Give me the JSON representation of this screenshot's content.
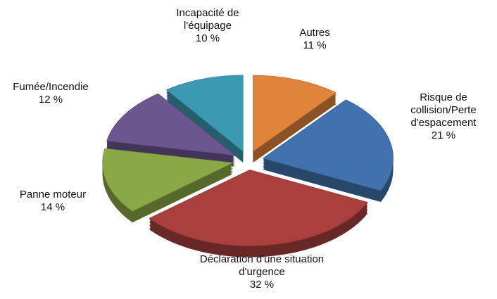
{
  "chart_data": {
    "type": "pie",
    "categories": [
      "Autres",
      "Risque de collision/Perte d'espacement",
      "Déclaration d'une situation d'urgence",
      "Panne moteur",
      "Fumée/Incendie",
      "Incapacité de l'équipage"
    ],
    "values": [
      11,
      21,
      32,
      14,
      12,
      10
    ],
    "value_labels": [
      "11 %",
      "21 %",
      "32 %",
      "14 %",
      "12 %",
      "10 %"
    ],
    "colors": [
      "#e0843c",
      "#4172ad",
      "#a9403d",
      "#8aa946",
      "#6c5690",
      "#3b9ab1"
    ]
  }
}
